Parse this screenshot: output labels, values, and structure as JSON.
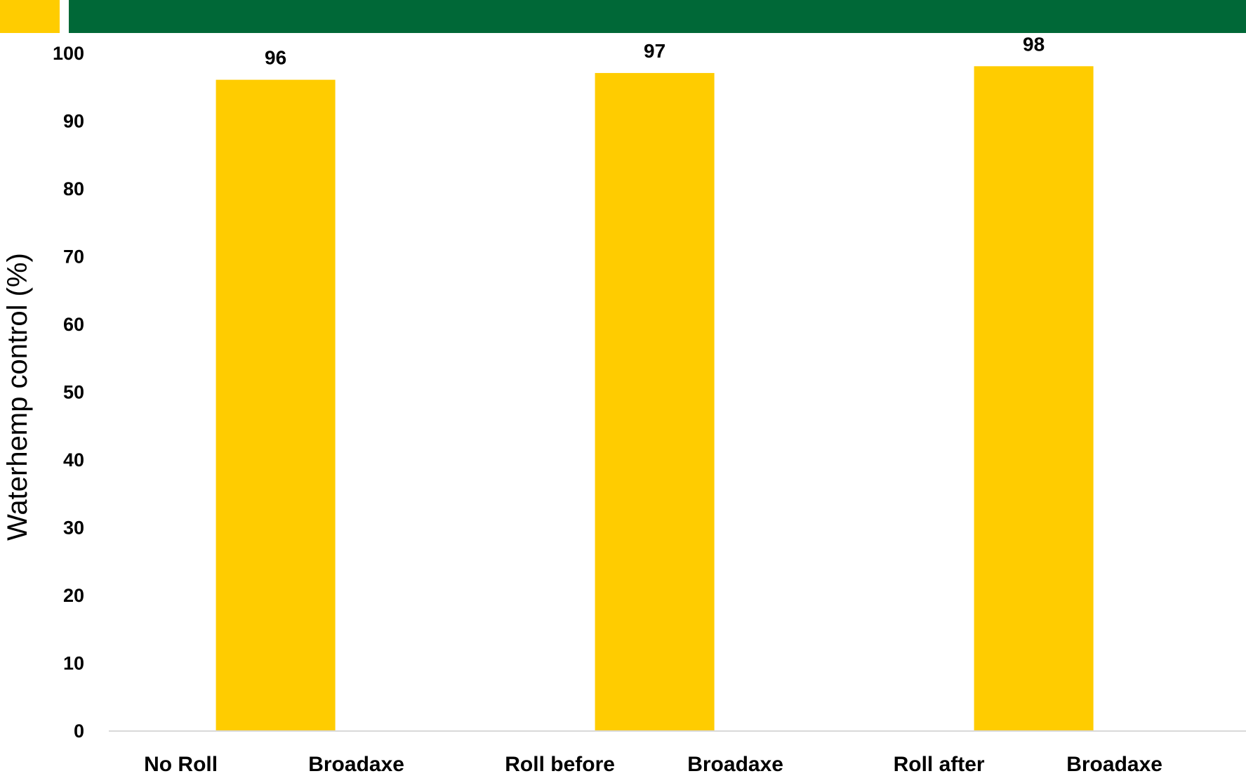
{
  "colors": {
    "accent_gold": "#FFCC00",
    "accent_green": "#006837",
    "bar": "#FFCC00",
    "axis_line": "#d9d9d9"
  },
  "chart_data": {
    "type": "bar",
    "categories": [
      [
        "No Roll",
        "Broadaxe"
      ],
      [
        "Roll before",
        "Broadaxe"
      ],
      [
        "Roll after",
        "Broadaxe"
      ]
    ],
    "values": [
      96,
      97,
      98
    ],
    "data_labels": [
      "96",
      "97",
      "98"
    ],
    "title": "",
    "xlabel": "",
    "ylabel": "Waterhemp control (%)",
    "ylim": [
      0,
      100
    ],
    "yticks": [
      0,
      10,
      20,
      30,
      40,
      50,
      60,
      70,
      80,
      90,
      100
    ],
    "grid": false,
    "legend": "none"
  }
}
